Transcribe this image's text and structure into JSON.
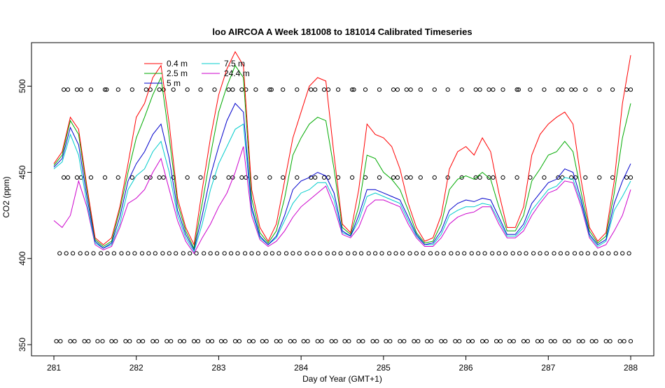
{
  "chart_data": {
    "type": "line",
    "title": "loo AIRCOA A  Week 181008 to 181014  Calibrated Timeseries",
    "xlabel": "Day of Year (GMT+1)",
    "ylabel": "CO2 (ppm)",
    "xlim": [
      281,
      288
    ],
    "ylim": [
      350,
      520
    ],
    "x_ticks": [
      281,
      282,
      283,
      284,
      285,
      286,
      287,
      288
    ],
    "x_tick_labels": [
      "281",
      "282",
      "283",
      "284",
      "285",
      "286",
      "287",
      "288"
    ],
    "y_ticks": [
      350,
      400,
      450,
      500
    ],
    "y_tick_labels": [
      "350",
      "400",
      "450",
      "500"
    ],
    "grid": false,
    "legend_position": "top-left",
    "series": [
      {
        "name": "0.4 m",
        "color": "#ff0000",
        "x": [
          281.0,
          281.1,
          281.2,
          281.3,
          281.4,
          281.5,
          281.6,
          281.7,
          281.8,
          281.9,
          282.0,
          282.1,
          282.2,
          282.3,
          282.4,
          282.5,
          282.6,
          282.7,
          282.8,
          282.9,
          283.0,
          283.1,
          283.2,
          283.3,
          283.4,
          283.5,
          283.6,
          283.7,
          283.8,
          283.9,
          284.0,
          284.1,
          284.2,
          284.3,
          284.4,
          284.5,
          284.6,
          284.7,
          284.8,
          284.9,
          285.0,
          285.1,
          285.2,
          285.3,
          285.4,
          285.5,
          285.6,
          285.7,
          285.8,
          285.9,
          286.0,
          286.1,
          286.2,
          286.3,
          286.4,
          286.5,
          286.6,
          286.7,
          286.8,
          286.9,
          287.0,
          287.1,
          287.2,
          287.3,
          287.4,
          287.5,
          287.6,
          287.7,
          287.8,
          287.9,
          288.0
        ],
        "y": [
          455,
          462,
          482,
          475,
          442,
          412,
          408,
          412,
          430,
          455,
          482,
          490,
          505,
          512,
          478,
          435,
          418,
          408,
          440,
          470,
          495,
          510,
          520,
          512,
          440,
          418,
          410,
          420,
          445,
          470,
          485,
          500,
          505,
          503,
          460,
          420,
          415,
          440,
          478,
          472,
          470,
          465,
          452,
          432,
          418,
          410,
          412,
          425,
          452,
          462,
          465,
          460,
          470,
          462,
          438,
          418,
          418,
          430,
          460,
          472,
          478,
          482,
          485,
          478,
          445,
          418,
          410,
          415,
          445,
          490,
          518
        ]
      },
      {
        "name": "2.5 m",
        "color": "#00aa00",
        "x": [
          281.0,
          281.1,
          281.2,
          281.3,
          281.4,
          281.5,
          281.6,
          281.7,
          281.8,
          281.9,
          282.0,
          282.1,
          282.2,
          282.3,
          282.4,
          282.5,
          282.6,
          282.7,
          282.8,
          282.9,
          283.0,
          283.1,
          283.2,
          283.3,
          283.4,
          283.5,
          283.6,
          283.7,
          283.8,
          283.9,
          284.0,
          284.1,
          284.2,
          284.3,
          284.4,
          284.5,
          284.6,
          284.7,
          284.8,
          284.9,
          285.0,
          285.1,
          285.2,
          285.3,
          285.4,
          285.5,
          285.6,
          285.7,
          285.8,
          285.9,
          286.0,
          286.1,
          286.2,
          286.3,
          286.4,
          286.5,
          286.6,
          286.7,
          286.8,
          286.9,
          287.0,
          287.1,
          287.2,
          287.3,
          287.4,
          287.5,
          287.6,
          287.7,
          287.8,
          287.9,
          288.0
        ],
        "y": [
          454,
          460,
          480,
          472,
          440,
          411,
          407,
          410,
          428,
          450,
          470,
          482,
          495,
          505,
          470,
          432,
          416,
          406,
          432,
          460,
          485,
          500,
          512,
          505,
          435,
          415,
          409,
          416,
          435,
          460,
          470,
          478,
          482,
          480,
          452,
          418,
          414,
          430,
          460,
          458,
          450,
          446,
          440,
          428,
          415,
          409,
          410,
          420,
          440,
          446,
          448,
          446,
          450,
          446,
          430,
          416,
          416,
          425,
          445,
          452,
          460,
          462,
          468,
          462,
          438,
          416,
          409,
          413,
          438,
          470,
          490
        ]
      },
      {
        "name": "5 m",
        "color": "#0000cc",
        "x": [
          281.0,
          281.1,
          281.2,
          281.3,
          281.4,
          281.5,
          281.6,
          281.7,
          281.8,
          281.9,
          282.0,
          282.1,
          282.2,
          282.3,
          282.4,
          282.5,
          282.6,
          282.7,
          282.8,
          282.9,
          283.0,
          283.1,
          283.2,
          283.3,
          283.4,
          283.5,
          283.6,
          283.7,
          283.8,
          283.9,
          284.0,
          284.1,
          284.2,
          284.3,
          284.4,
          284.5,
          284.6,
          284.7,
          284.8,
          284.9,
          285.0,
          285.1,
          285.2,
          285.3,
          285.4,
          285.5,
          285.6,
          285.7,
          285.8,
          285.9,
          286.0,
          286.1,
          286.2,
          286.3,
          286.4,
          286.5,
          286.6,
          286.7,
          286.8,
          286.9,
          287.0,
          287.1,
          287.2,
          287.3,
          287.4,
          287.5,
          287.6,
          287.7,
          287.8,
          287.9,
          288.0
        ],
        "y": [
          453,
          458,
          476,
          466,
          436,
          410,
          406,
          409,
          424,
          445,
          455,
          462,
          472,
          478,
          458,
          428,
          414,
          405,
          425,
          448,
          465,
          480,
          490,
          485,
          430,
          413,
          408,
          413,
          425,
          440,
          445,
          447,
          450,
          448,
          438,
          416,
          413,
          425,
          440,
          440,
          438,
          436,
          434,
          424,
          414,
          408,
          409,
          416,
          428,
          432,
          434,
          433,
          435,
          434,
          424,
          414,
          414,
          420,
          432,
          438,
          444,
          446,
          452,
          450,
          434,
          414,
          408,
          411,
          432,
          445,
          455
        ]
      },
      {
        "name": "7.5 m",
        "color": "#00cccc",
        "x": [
          281.0,
          281.1,
          281.2,
          281.3,
          281.4,
          281.5,
          281.6,
          281.7,
          281.8,
          281.9,
          282.0,
          282.1,
          282.2,
          282.3,
          282.4,
          282.5,
          282.6,
          282.7,
          282.8,
          282.9,
          283.0,
          283.1,
          283.2,
          283.3,
          283.4,
          283.5,
          283.6,
          283.7,
          283.8,
          283.9,
          284.0,
          284.1,
          284.2,
          284.3,
          284.4,
          284.5,
          284.6,
          284.7,
          284.8,
          284.9,
          285.0,
          285.1,
          285.2,
          285.3,
          285.4,
          285.5,
          285.6,
          285.7,
          285.8,
          285.9,
          286.0,
          286.1,
          286.2,
          286.3,
          286.4,
          286.5,
          286.6,
          286.7,
          286.8,
          286.9,
          287.0,
          287.1,
          287.2,
          287.3,
          287.4,
          287.5,
          287.6,
          287.7,
          287.8,
          287.9,
          288.0
        ],
        "y": [
          452,
          456,
          472,
          460,
          432,
          409,
          406,
          408,
          420,
          440,
          448,
          452,
          462,
          468,
          450,
          425,
          412,
          404,
          420,
          440,
          455,
          465,
          475,
          478,
          428,
          412,
          408,
          412,
          422,
          432,
          438,
          440,
          444,
          444,
          434,
          415,
          413,
          422,
          436,
          438,
          436,
          434,
          432,
          422,
          413,
          408,
          408,
          414,
          425,
          428,
          430,
          430,
          432,
          431,
          422,
          413,
          413,
          418,
          428,
          434,
          440,
          442,
          447,
          446,
          432,
          413,
          407,
          410,
          428,
          436,
          445
        ]
      },
      {
        "name": "24.4 m",
        "color": "#cc00cc",
        "x": [
          281.0,
          281.1,
          281.2,
          281.3,
          281.4,
          281.5,
          281.6,
          281.7,
          281.8,
          281.9,
          282.0,
          282.1,
          282.2,
          282.3,
          282.4,
          282.5,
          282.6,
          282.7,
          282.8,
          282.9,
          283.0,
          283.1,
          283.2,
          283.3,
          283.4,
          283.5,
          283.6,
          283.7,
          283.8,
          283.9,
          284.0,
          284.1,
          284.2,
          284.3,
          284.4,
          284.5,
          284.6,
          284.7,
          284.8,
          284.9,
          285.0,
          285.1,
          285.2,
          285.3,
          285.4,
          285.5,
          285.6,
          285.7,
          285.8,
          285.9,
          286.0,
          286.1,
          286.2,
          286.3,
          286.4,
          286.5,
          286.6,
          286.7,
          286.8,
          286.9,
          287.0,
          287.1,
          287.2,
          287.3,
          287.4,
          287.5,
          287.6,
          287.7,
          287.8,
          287.9,
          288.0
        ],
        "y": [
          422,
          418,
          425,
          445,
          430,
          408,
          405,
          407,
          418,
          432,
          435,
          440,
          450,
          458,
          440,
          422,
          410,
          403,
          412,
          420,
          430,
          438,
          450,
          465,
          425,
          411,
          407,
          410,
          416,
          424,
          430,
          434,
          438,
          442,
          430,
          414,
          412,
          418,
          430,
          434,
          434,
          432,
          430,
          420,
          412,
          407,
          407,
          412,
          420,
          424,
          426,
          427,
          430,
          430,
          420,
          412,
          412,
          416,
          425,
          432,
          438,
          440,
          445,
          444,
          430,
          412,
          406,
          408,
          416,
          425,
          440
        ]
      }
    ],
    "marker_series": [
      {
        "name": "",
        "marker": "circle",
        "y": 352,
        "x": [
          281.03,
          281.08,
          281.2,
          281.25,
          281.37,
          281.42,
          281.53,
          281.59,
          281.7,
          281.75,
          281.87,
          281.92,
          282.03,
          282.08,
          282.2,
          282.25,
          282.37,
          282.42,
          282.53,
          282.58,
          282.7,
          282.75,
          282.87,
          282.92,
          283.03,
          283.08,
          283.2,
          283.25,
          283.37,
          283.42,
          283.53,
          283.58,
          283.7,
          283.75,
          283.87,
          283.92,
          284.03,
          284.08,
          284.2,
          284.25,
          284.37,
          284.42,
          284.53,
          284.58,
          284.7,
          284.75,
          284.87,
          284.92,
          285.03,
          285.08,
          285.2,
          285.25,
          285.37,
          285.42,
          285.53,
          285.58,
          285.7,
          285.75,
          285.87,
          285.92,
          286.03,
          286.08,
          286.2,
          286.25,
          286.37,
          286.42,
          286.53,
          286.58,
          286.7,
          286.75,
          286.87,
          286.92,
          287.03,
          287.08,
          287.2,
          287.25,
          287.37,
          287.42,
          287.53,
          287.58,
          287.7,
          287.75,
          287.87,
          287.92,
          288.0
        ]
      },
      {
        "name": "",
        "marker": "circle",
        "y": 403,
        "x": [
          281.07,
          281.15,
          281.23,
          281.32,
          281.4,
          281.48,
          281.57,
          281.65,
          281.73,
          281.82,
          281.9,
          281.98,
          282.07,
          282.15,
          282.23,
          282.32,
          282.4,
          282.48,
          282.57,
          282.65,
          282.73,
          282.82,
          282.9,
          282.98,
          283.07,
          283.15,
          283.23,
          283.32,
          283.4,
          283.48,
          283.57,
          283.65,
          283.73,
          283.82,
          283.9,
          283.98,
          284.07,
          284.15,
          284.23,
          284.32,
          284.4,
          284.48,
          284.57,
          284.65,
          284.73,
          284.82,
          284.9,
          284.98,
          285.07,
          285.15,
          285.23,
          285.32,
          285.4,
          285.48,
          285.57,
          285.65,
          285.73,
          285.82,
          285.9,
          285.98,
          286.07,
          286.15,
          286.23,
          286.32,
          286.4,
          286.48,
          286.57,
          286.65,
          286.73,
          286.82,
          286.9,
          286.98,
          287.07,
          287.15,
          287.23,
          287.32,
          287.4,
          287.48,
          287.57,
          287.65,
          287.73,
          287.82,
          287.9,
          287.98
        ]
      },
      {
        "name": "",
        "marker": "circle",
        "y": 447,
        "x": [
          281.12,
          281.17,
          281.28,
          281.33,
          281.45,
          281.62,
          281.78,
          281.95,
          282.12,
          282.17,
          282.28,
          282.33,
          282.45,
          282.62,
          282.78,
          282.95,
          283.12,
          283.17,
          283.28,
          283.33,
          283.45,
          283.62,
          283.78,
          283.95,
          284.12,
          284.17,
          284.28,
          284.33,
          284.45,
          284.62,
          284.78,
          284.95,
          285.12,
          285.17,
          285.28,
          285.33,
          285.45,
          285.62,
          285.78,
          285.95,
          286.12,
          286.17,
          286.28,
          286.33,
          286.45,
          286.62,
          286.78,
          286.95,
          287.12,
          287.17,
          287.28,
          287.33,
          287.45,
          287.62,
          287.78,
          287.95,
          288.0
        ]
      },
      {
        "name": "",
        "marker": "circle",
        "y": 498,
        "x": [
          281.12,
          281.17,
          281.28,
          281.33,
          281.45,
          281.62,
          281.64,
          281.78,
          281.95,
          282.12,
          282.17,
          282.28,
          282.33,
          282.45,
          282.62,
          282.78,
          282.95,
          283.12,
          283.17,
          283.28,
          283.33,
          283.45,
          283.62,
          283.64,
          283.78,
          283.95,
          284.12,
          284.17,
          284.28,
          284.33,
          284.45,
          284.62,
          284.64,
          284.78,
          284.95,
          285.12,
          285.17,
          285.28,
          285.33,
          285.45,
          285.62,
          285.78,
          285.95,
          286.12,
          286.17,
          286.28,
          286.33,
          286.45,
          286.62,
          286.64,
          286.78,
          286.95,
          287.12,
          287.17,
          287.28,
          287.33,
          287.45,
          287.62,
          287.78,
          287.95,
          288.0
        ]
      }
    ]
  }
}
